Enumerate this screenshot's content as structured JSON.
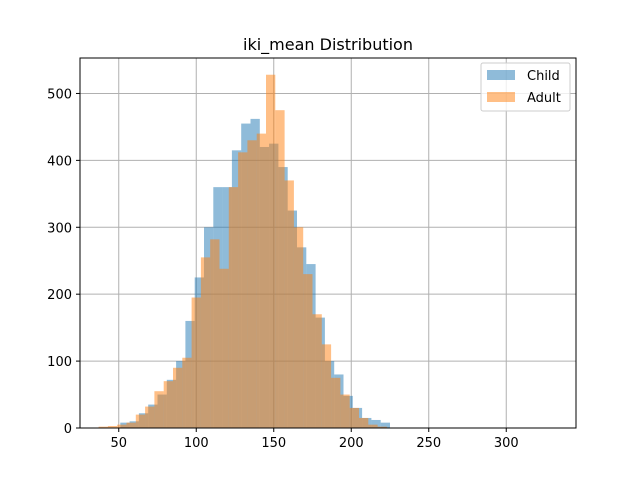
{
  "chart_data": {
    "type": "bar",
    "title": "iki_mean Distribution",
    "xlabel": "",
    "ylabel": "",
    "xlim": [
      25,
      345
    ],
    "ylim": [
      0,
      553
    ],
    "xticks": [
      "50",
      "100",
      "150",
      "200",
      "250",
      "300"
    ],
    "yticks": [
      "0",
      "100",
      "200",
      "300",
      "400",
      "500"
    ],
    "grid": true,
    "legend_position": "top-right",
    "bin_width": 6,
    "series": [
      {
        "name": "Child",
        "color": "#1f77b4",
        "alpha": 0.5,
        "bins_start": 51,
        "values": [
          8,
          10,
          22,
          35,
          50,
          72,
          100,
          160,
          225,
          300,
          360,
          360,
          415,
          455,
          462,
          420,
          425,
          390,
          325,
          270,
          245,
          165,
          100,
          80,
          48,
          30,
          15,
          12,
          8
        ]
      },
      {
        "name": "Adult",
        "color": "#ff7f0e",
        "alpha": 0.5,
        "bins_start": 37,
        "values": [
          2,
          3,
          5,
          8,
          20,
          32,
          55,
          70,
          90,
          105,
          195,
          255,
          282,
          238,
          360,
          412,
          430,
          440,
          528,
          475,
          370,
          300,
          230,
          170,
          125,
          75,
          50,
          30,
          15,
          5,
          2
        ]
      }
    ]
  }
}
